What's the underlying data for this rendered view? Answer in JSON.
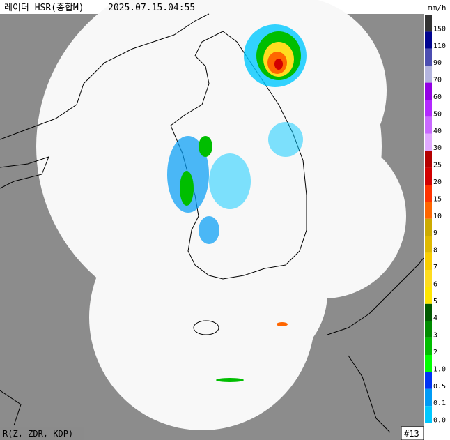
{
  "header": {
    "title": "레이더 HSR(종합M)",
    "timestamp": "2025.07.15.04:55"
  },
  "legend": {
    "unit": "mm/h",
    "levels": [
      {
        "label": "150",
        "color": "#333333"
      },
      {
        "label": "110",
        "color": "#000390"
      },
      {
        "label": "90",
        "color": "#4c4eb1"
      },
      {
        "label": "70",
        "color": "#b3b4de"
      },
      {
        "label": "60",
        "color": "#9300e4"
      },
      {
        "label": "50",
        "color": "#b329ff"
      },
      {
        "label": "40",
        "color": "#c969ff"
      },
      {
        "label": "30",
        "color": "#e0a9ff"
      },
      {
        "label": "25",
        "color": "#b40000"
      },
      {
        "label": "20",
        "color": "#d20000"
      },
      {
        "label": "15",
        "color": "#ff3300"
      },
      {
        "label": "10",
        "color": "#ff6600"
      },
      {
        "label": "9",
        "color": "#ccaa00"
      },
      {
        "label": "8",
        "color": "#e0b900"
      },
      {
        "label": "7",
        "color": "#f9cd00"
      },
      {
        "label": "6",
        "color": "#ffdc1f"
      },
      {
        "label": "5",
        "color": "#ffe600"
      },
      {
        "label": "4",
        "color": "#005a00"
      },
      {
        "label": "3",
        "color": "#008c00"
      },
      {
        "label": "2",
        "color": "#00be00"
      },
      {
        "label": "1.0",
        "color": "#00ff00"
      },
      {
        "label": "0.5",
        "color": "#0033f5"
      },
      {
        "label": "0.1",
        "color": "#009bf5"
      },
      {
        "label": "0.0",
        "color": "#00c8ff"
      }
    ]
  },
  "footer": {
    "method": "R(Z, ZDR, KDP)",
    "site_count": "#13"
  }
}
